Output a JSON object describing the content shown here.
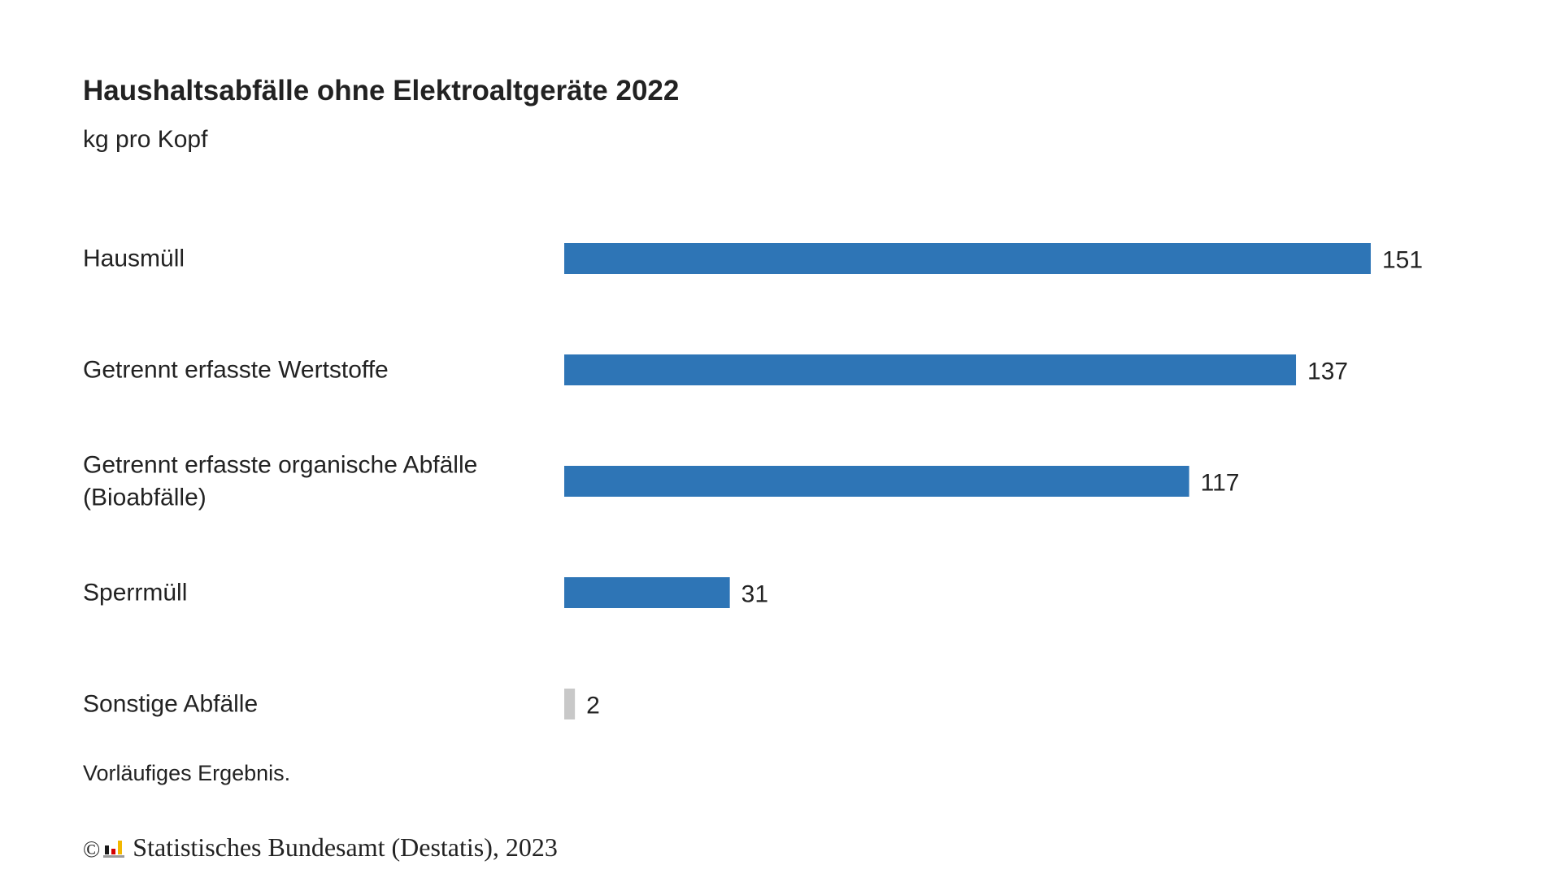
{
  "chart_data": {
    "type": "bar",
    "orientation": "horizontal",
    "title": "Haushaltsabfälle ohne Elektroaltgeräte 2022",
    "subtitle": "kg pro Kopf",
    "categories": [
      [
        "Hausmüll"
      ],
      [
        "Getrennt erfasste Wertstoffe"
      ],
      [
        "Getrennt erfasste organische Abfälle",
        "(Bioabfälle)"
      ],
      [
        "Sperrmüll"
      ],
      [
        "Sonstige Abfälle"
      ]
    ],
    "values": [
      151,
      137,
      117,
      31,
      2
    ],
    "value_labels": [
      "151",
      "137",
      "117",
      "31",
      "2"
    ],
    "bar_colors": [
      "#2e75b6",
      "#2e75b6",
      "#2e75b6",
      "#2e75b6",
      "#c8c8c8"
    ],
    "xlim": [
      0,
      151
    ],
    "grid": false,
    "legend": "none"
  },
  "note": "Vorläufiges Ergebnis.",
  "source": {
    "copyright": "©",
    "text": "Statistisches Bundesamt (Destatis), 2023",
    "logo_icon": "destatis-logo-icon"
  }
}
